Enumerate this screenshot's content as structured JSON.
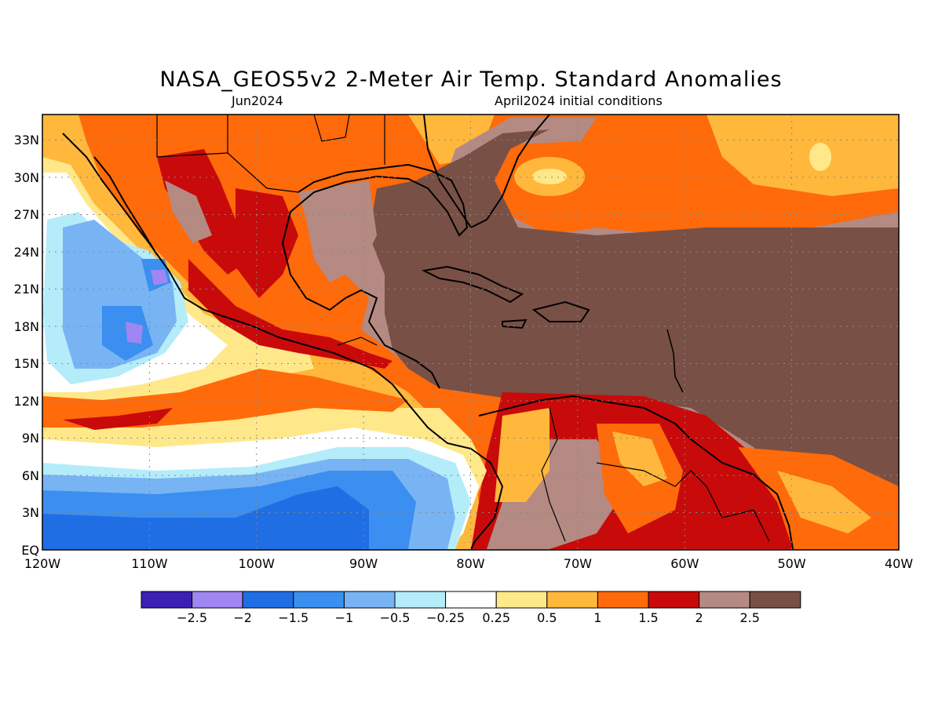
{
  "map": {
    "title": "NASA_GEOS5v2 2-Meter Air Temp. Standard Anomalies",
    "subtitle_left": "Jun2024",
    "subtitle_right": "April2024 initial conditions",
    "lat_labels": [
      "33N",
      "30N",
      "27N",
      "24N",
      "21N",
      "18N",
      "15N",
      "12N",
      "9N",
      "6N",
      "3N",
      "EQ"
    ],
    "lon_labels": [
      "120W",
      "110W",
      "100W",
      "90W",
      "80W",
      "70W",
      "60W",
      "50W",
      "40W"
    ],
    "lat_range": [
      0,
      35
    ],
    "lon_range": [
      -120,
      -40
    ]
  },
  "colorbar": {
    "colors": [
      "#3c1fb4",
      "#9f86f2",
      "#1f6ee4",
      "#3a8ff0",
      "#78b4f4",
      "#b4ecfa",
      "#ffffff",
      "#ffe88a",
      "#ffb83c",
      "#ff6a0a",
      "#c80a0a",
      "#b48a82",
      "#785046"
    ],
    "labels": [
      "−2.5",
      "−2",
      "−1.5",
      "−1",
      "−0.5",
      "−0.25",
      "0.25",
      "0.5",
      "1",
      "1.5",
      "2",
      "2.5"
    ]
  }
}
